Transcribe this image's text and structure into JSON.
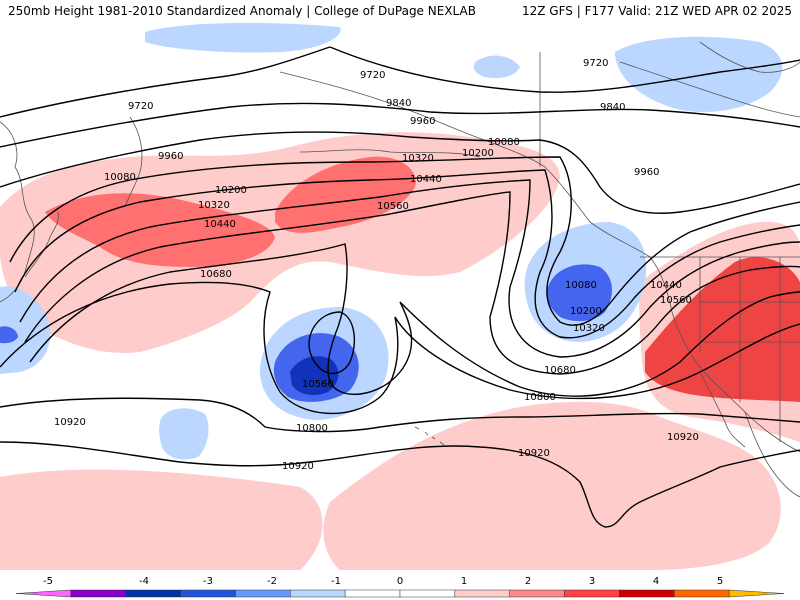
{
  "header": {
    "title": "250mb Height 1981-2010 Standardized Anomaly | College of DuPage NEXLAB",
    "run_info": "12Z GFS | F177 Valid: 21Z WED APR 02 2025"
  },
  "map": {
    "contour_labels": [
      {
        "id": "9720-a",
        "text": "9720"
      },
      {
        "id": "9720-b",
        "text": "9720"
      },
      {
        "id": "9720-c",
        "text": "9720"
      },
      {
        "id": "9840-a",
        "text": "9840"
      },
      {
        "id": "9840-b",
        "text": "9840"
      },
      {
        "id": "9960-a",
        "text": "9960"
      },
      {
        "id": "9960-b",
        "text": "9960"
      },
      {
        "id": "9960-c",
        "text": "9960"
      },
      {
        "id": "10080-a",
        "text": "10080"
      },
      {
        "id": "10080-b",
        "text": "10080"
      },
      {
        "id": "10080-c",
        "text": "10080"
      },
      {
        "id": "10200-a",
        "text": "10200"
      },
      {
        "id": "10200-b",
        "text": "10200"
      },
      {
        "id": "10200-c",
        "text": "10200"
      },
      {
        "id": "10320-a",
        "text": "10320"
      },
      {
        "id": "10320-b",
        "text": "10320"
      },
      {
        "id": "10320-c",
        "text": "10320"
      },
      {
        "id": "10440-a",
        "text": "10440"
      },
      {
        "id": "10440-b",
        "text": "10440"
      },
      {
        "id": "10440-c",
        "text": "10440"
      },
      {
        "id": "10560-a",
        "text": "10560"
      },
      {
        "id": "10560-b",
        "text": "10560"
      },
      {
        "id": "10560-c",
        "text": "10560"
      },
      {
        "id": "10680-a",
        "text": "10680"
      },
      {
        "id": "10680-b",
        "text": "10680"
      },
      {
        "id": "10800-a",
        "text": "10800"
      },
      {
        "id": "10800-b",
        "text": "10800"
      },
      {
        "id": "10920-a",
        "text": "10920"
      },
      {
        "id": "10920-b",
        "text": "10920"
      },
      {
        "id": "10920-c",
        "text": "10920"
      },
      {
        "id": "10920-d",
        "text": "10920"
      }
    ]
  },
  "colorbar": {
    "ticks": [
      "-5",
      "-4",
      "-3",
      "-2",
      "-1",
      "0",
      "1",
      "2",
      "3",
      "4",
      "5"
    ],
    "colors": [
      "#ff66ff",
      "#8800cc",
      "#0033aa",
      "#2255dd",
      "#6699ff",
      "#bbd7ff",
      "#ffffff",
      "#ffffff",
      "#ffcccc",
      "#ff8888",
      "#ff4444",
      "#cc0000",
      "#ff6600",
      "#ffbb00"
    ]
  }
}
